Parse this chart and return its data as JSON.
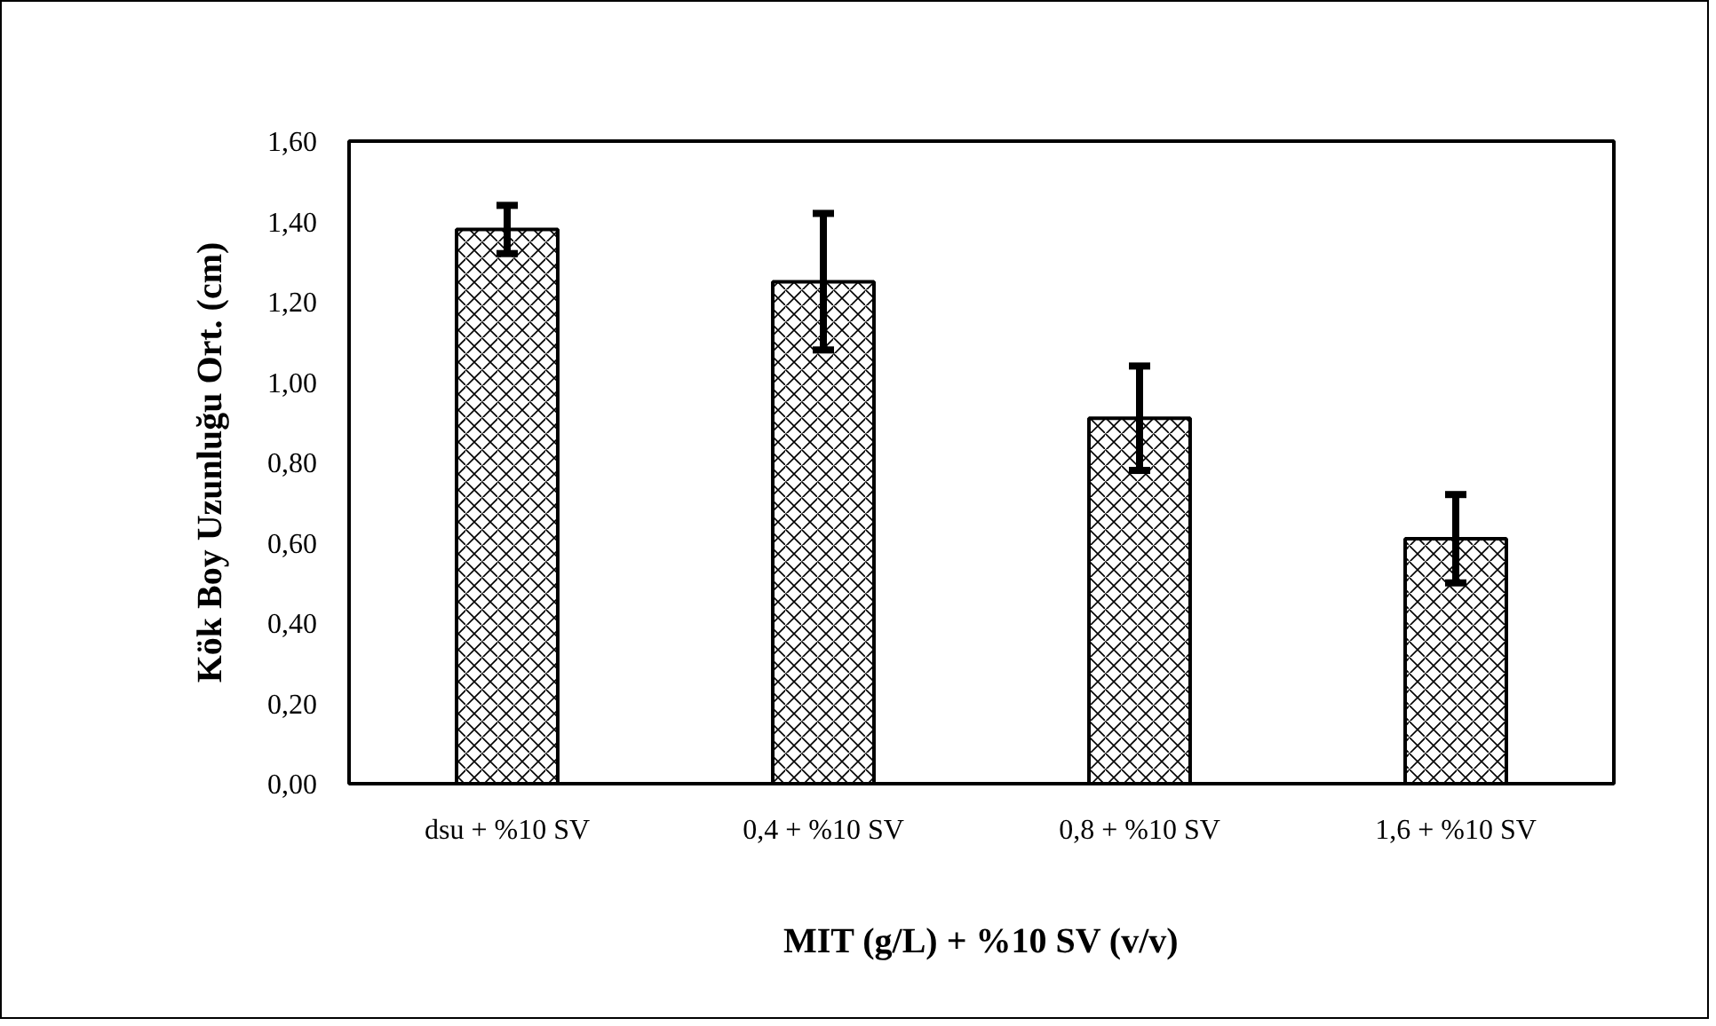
{
  "chart_data": {
    "type": "bar",
    "xlabel": "MIT (g/L) + %10 SV (v/v)",
    "ylabel": "Kök Boy Uzunluğu Ort. (cm)",
    "categories": [
      "dsu + %10 SV",
      "0,4 + %10 SV",
      "0,8 + %10 SV",
      "1,6 + %10 SV"
    ],
    "values": [
      1.38,
      1.25,
      0.91,
      0.61
    ],
    "errors": [
      0.06,
      0.17,
      0.13,
      0.11
    ],
    "color": "#ffffff",
    "ylim": [
      0,
      1.6
    ],
    "yticks": [
      {
        "value": 0,
        "label": "0,00"
      },
      {
        "value": 0.2,
        "label": "0,20"
      },
      {
        "value": 0.4,
        "label": "0,40"
      },
      {
        "value": 0.6,
        "label": "0,60"
      },
      {
        "value": 0.8,
        "label": "0,80"
      },
      {
        "value": 1.0,
        "label": "1,00"
      },
      {
        "value": 1.2,
        "label": "1,20"
      },
      {
        "value": 1.4,
        "label": "1,40"
      },
      {
        "value": 1.6,
        "label": "1,60"
      }
    ],
    "grid": false
  }
}
